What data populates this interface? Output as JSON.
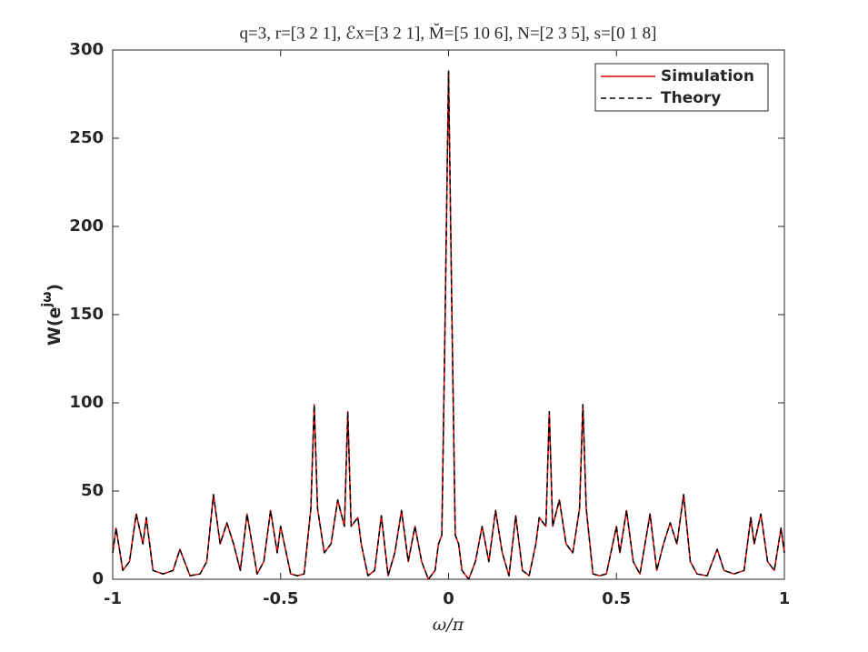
{
  "chart_data": {
    "type": "line",
    "title": "q=3, r=[3 2 1], ℰx=[3 2 1], M̆=[5 10 6], N=[2 3 5], s=[0 1 8]",
    "xlabel": "ω/π",
    "ylabel": {
      "base": "W(e",
      "sup": "jω",
      "close": ")"
    },
    "x": [
      -1,
      -0.99,
      -0.97,
      -0.95,
      -0.93,
      -0.91,
      -0.9,
      -0.88,
      -0.85,
      -0.82,
      -0.8,
      -0.77,
      -0.74,
      -0.72,
      -0.7,
      -0.68,
      -0.66,
      -0.64,
      -0.62,
      -0.6,
      -0.57,
      -0.55,
      -0.53,
      -0.51,
      -0.5,
      -0.47,
      -0.45,
      -0.43,
      -0.41,
      -0.4,
      -0.39,
      -0.37,
      -0.35,
      -0.33,
      -0.31,
      -0.3,
      -0.29,
      -0.27,
      -0.26,
      -0.24,
      -0.22,
      -0.2,
      -0.18,
      -0.16,
      -0.14,
      -0.12,
      -0.1,
      -0.08,
      -0.06,
      -0.04,
      -0.03,
      -0.02,
      -0.01,
      0,
      0.01,
      0.02,
      0.03,
      0.04,
      0.06,
      0.08,
      0.1,
      0.12,
      0.14,
      0.16,
      0.18,
      0.2,
      0.22,
      0.24,
      0.26,
      0.27,
      0.29,
      0.3,
      0.31,
      0.33,
      0.35,
      0.37,
      0.39,
      0.4,
      0.41,
      0.43,
      0.45,
      0.47,
      0.5,
      0.51,
      0.53,
      0.55,
      0.57,
      0.6,
      0.62,
      0.64,
      0.66,
      0.68,
      0.7,
      0.72,
      0.74,
      0.77,
      0.8,
      0.82,
      0.85,
      0.88,
      0.9,
      0.91,
      0.93,
      0.95,
      0.97,
      0.99,
      1
    ],
    "series": [
      {
        "name": "Simulation",
        "color": "#e00000",
        "dash": false,
        "values": [
          15,
          29,
          5,
          10,
          37,
          20,
          35,
          5,
          3,
          5,
          17,
          2,
          3,
          10,
          48,
          20,
          32,
          20,
          5,
          37,
          3,
          10,
          39,
          15,
          30,
          3,
          2,
          3,
          40,
          99,
          40,
          15,
          20,
          45,
          30,
          95,
          30,
          35,
          20,
          2,
          5,
          36,
          2,
          15,
          39,
          10,
          30,
          10,
          0,
          5,
          20,
          25,
          150,
          288,
          150,
          25,
          20,
          5,
          0,
          10,
          30,
          10,
          39,
          15,
          2,
          36,
          5,
          2,
          20,
          35,
          30,
          95,
          30,
          45,
          20,
          15,
          40,
          99,
          40,
          3,
          2,
          3,
          30,
          15,
          39,
          10,
          3,
          37,
          5,
          20,
          32,
          20,
          48,
          10,
          3,
          2,
          17,
          5,
          3,
          5,
          35,
          20,
          37,
          10,
          5,
          29,
          15
        ]
      },
      {
        "name": "Theory",
        "color": "#000000",
        "dash": true,
        "values": [
          15,
          29,
          5,
          10,
          37,
          20,
          35,
          5,
          3,
          5,
          17,
          2,
          3,
          10,
          48,
          20,
          32,
          20,
          5,
          37,
          3,
          10,
          39,
          15,
          30,
          3,
          2,
          3,
          40,
          99,
          40,
          15,
          20,
          45,
          30,
          95,
          30,
          35,
          20,
          2,
          5,
          36,
          2,
          15,
          39,
          10,
          30,
          10,
          0,
          5,
          20,
          25,
          150,
          288,
          150,
          25,
          20,
          5,
          0,
          10,
          30,
          10,
          39,
          15,
          2,
          36,
          5,
          2,
          20,
          35,
          30,
          95,
          30,
          45,
          20,
          15,
          40,
          99,
          40,
          3,
          2,
          3,
          30,
          15,
          39,
          10,
          3,
          37,
          5,
          20,
          32,
          20,
          48,
          10,
          3,
          2,
          17,
          5,
          3,
          5,
          35,
          20,
          37,
          10,
          5,
          29,
          15
        ]
      }
    ],
    "xlim": [
      -1,
      1
    ],
    "xticks": [
      -1,
      -0.5,
      0,
      0.5,
      1
    ],
    "ylim": [
      0,
      300
    ],
    "yticks": [
      0,
      50,
      100,
      150,
      200,
      250,
      300
    ],
    "grid": false,
    "legend": "northeast"
  }
}
